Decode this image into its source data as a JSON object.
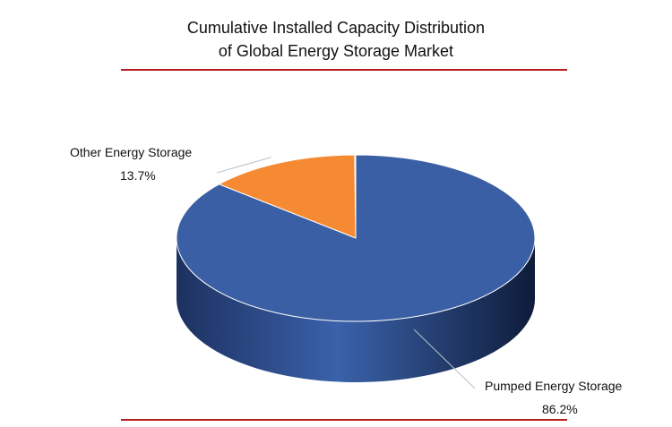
{
  "chart_data": {
    "type": "pie",
    "title": [
      "Cumulative Installed Capacity Distribution",
      "of Global Energy Storage Market"
    ],
    "slices": [
      {
        "name": "Pumped Energy Storage",
        "value": 86.2,
        "label": "86.2%",
        "color": "#3a5fa4"
      },
      {
        "name": "Other Energy Storage",
        "value": 13.7,
        "label": "13.7%",
        "color": "#f58a33"
      },
      {
        "name": "",
        "value": 0.1,
        "label": "",
        "color": "#a9c4a4"
      }
    ],
    "style": "3d",
    "legend": "none",
    "label_placement": "outside-with-leader-lines"
  },
  "colors": {
    "rule": "#b71c1c",
    "pie_side": "#22386a"
  }
}
